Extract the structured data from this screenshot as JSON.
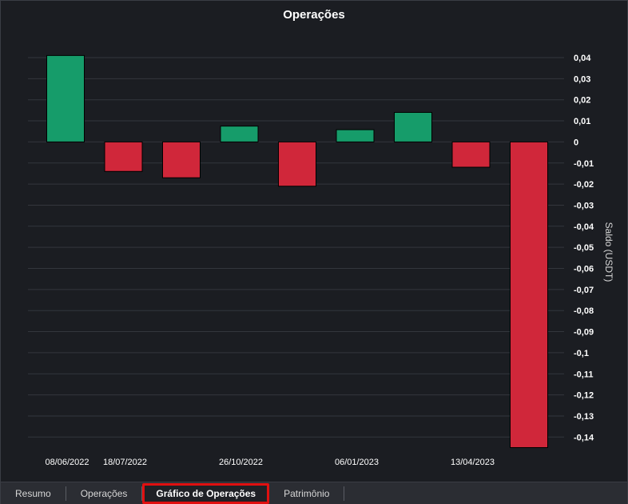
{
  "chart_data": {
    "type": "bar",
    "title": "Operações",
    "ylabel": "Saldo (USDT)",
    "ylim": [
      -0.14,
      0.04
    ],
    "yticks": [
      0.04,
      0.03,
      0.02,
      0.01,
      0,
      -0.01,
      -0.02,
      -0.03,
      -0.04,
      -0.05,
      -0.06,
      -0.07,
      -0.08,
      -0.09,
      -0.1,
      -0.11,
      -0.12,
      -0.13,
      -0.14
    ],
    "ytick_labels": [
      "0,04",
      "0,03",
      "0,02",
      "0,01",
      "0",
      "-0,01",
      "-0,02",
      "-0,03",
      "-0,04",
      "-0,05",
      "-0,06",
      "-0,07",
      "-0,08",
      "-0,09",
      "-0,1",
      "-0,11",
      "-0,12",
      "-0,13",
      "-0,14"
    ],
    "x_labels": [
      "08/06/2022",
      "18/07/2022",
      "",
      "26/10/2022",
      "",
      "06/01/2023",
      "",
      "13/04/2023",
      ""
    ],
    "values": [
      0.041,
      -0.014,
      -0.017,
      0.0075,
      -0.021,
      0.0058,
      0.014,
      -0.012,
      -0.145
    ],
    "positive_color": "#169c6a",
    "negative_color": "#d0273a",
    "grid": true,
    "y_axis_side": "right"
  },
  "tabs": [
    {
      "label": "Resumo"
    },
    {
      "label": "Operações"
    },
    {
      "label": "Gráfico de Operações"
    },
    {
      "label": "Patrimônio"
    }
  ]
}
